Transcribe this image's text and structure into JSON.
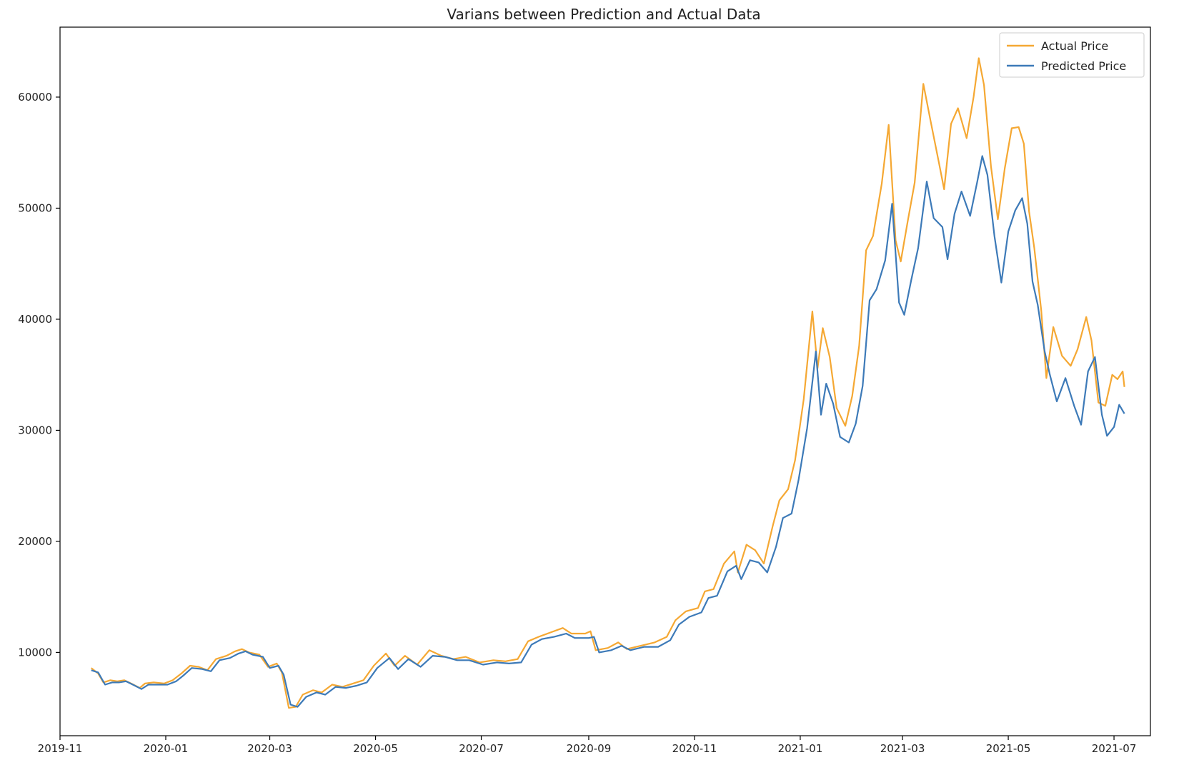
{
  "chart_data": {
    "type": "line",
    "title": "Varians between Prediction and Actual Data",
    "xlabel": "",
    "ylabel": "",
    "x_axis_type": "date",
    "xlim": [
      "2019-11-01",
      "2021-07-22"
    ],
    "ylim": [
      2500,
      66300
    ],
    "x_ticks": [
      "2019-11-01",
      "2020-01-01",
      "2020-03-01",
      "2020-05-01",
      "2020-07-01",
      "2020-09-01",
      "2020-11-01",
      "2021-01-01",
      "2021-03-01",
      "2021-05-01",
      "2021-07-01"
    ],
    "x_tick_labels": [
      "2019-11",
      "2020-01",
      "2020-03",
      "2020-05",
      "2020-07",
      "2020-09",
      "2020-11",
      "2021-01",
      "2021-03",
      "2021-05",
      "2021-07"
    ],
    "y_ticks": [
      10000,
      20000,
      30000,
      40000,
      50000,
      60000
    ],
    "y_tick_labels": [
      "10000",
      "20000",
      "30000",
      "40000",
      "50000",
      "60000"
    ],
    "grid": false,
    "legend_position": "top-right",
    "series": [
      {
        "name": "Actual Price",
        "color": "#f5a833",
        "points": [
          [
            "2019-11-19",
            8600
          ],
          [
            "2019-11-23",
            8100
          ],
          [
            "2019-11-26",
            7300
          ],
          [
            "2019-11-30",
            7500
          ],
          [
            "2019-12-04",
            7400
          ],
          [
            "2019-12-08",
            7500
          ],
          [
            "2019-12-12",
            7200
          ],
          [
            "2019-12-17",
            6800
          ],
          [
            "2019-12-20",
            7200
          ],
          [
            "2019-12-25",
            7300
          ],
          [
            "2019-12-31",
            7200
          ],
          [
            "2020-01-05",
            7500
          ],
          [
            "2020-01-10",
            8100
          ],
          [
            "2020-01-15",
            8800
          ],
          [
            "2020-01-20",
            8700
          ],
          [
            "2020-01-25",
            8400
          ],
          [
            "2020-01-30",
            9400
          ],
          [
            "2020-02-05",
            9700
          ],
          [
            "2020-02-10",
            10100
          ],
          [
            "2020-02-14",
            10300
          ],
          [
            "2020-02-18",
            10000
          ],
          [
            "2020-02-24",
            9800
          ],
          [
            "2020-02-29",
            8700
          ],
          [
            "2020-03-05",
            9000
          ],
          [
            "2020-03-08",
            8200
          ],
          [
            "2020-03-12",
            5000
          ],
          [
            "2020-03-16",
            5100
          ],
          [
            "2020-03-20",
            6200
          ],
          [
            "2020-03-26",
            6600
          ],
          [
            "2020-03-31",
            6400
          ],
          [
            "2020-04-06",
            7100
          ],
          [
            "2020-04-12",
            6900
          ],
          [
            "2020-04-18",
            7200
          ],
          [
            "2020-04-24",
            7500
          ],
          [
            "2020-04-30",
            8800
          ],
          [
            "2020-05-07",
            9900
          ],
          [
            "2020-05-12",
            8800
          ],
          [
            "2020-05-18",
            9700
          ],
          [
            "2020-05-25",
            8900
          ],
          [
            "2020-06-01",
            10200
          ],
          [
            "2020-06-08",
            9700
          ],
          [
            "2020-06-15",
            9400
          ],
          [
            "2020-06-22",
            9600
          ],
          [
            "2020-06-30",
            9100
          ],
          [
            "2020-07-08",
            9300
          ],
          [
            "2020-07-15",
            9200
          ],
          [
            "2020-07-22",
            9400
          ],
          [
            "2020-07-28",
            11000
          ],
          [
            "2020-08-03",
            11400
          ],
          [
            "2020-08-10",
            11800
          ],
          [
            "2020-08-17",
            12200
          ],
          [
            "2020-08-22",
            11700
          ],
          [
            "2020-08-30",
            11700
          ],
          [
            "2020-09-02",
            11900
          ],
          [
            "2020-09-05",
            10200
          ],
          [
            "2020-09-12",
            10400
          ],
          [
            "2020-09-18",
            10900
          ],
          [
            "2020-09-23",
            10300
          ],
          [
            "2020-10-01",
            10600
          ],
          [
            "2020-10-09",
            10900
          ],
          [
            "2020-10-16",
            11400
          ],
          [
            "2020-10-21",
            12900
          ],
          [
            "2020-10-27",
            13700
          ],
          [
            "2020-11-03",
            14000
          ],
          [
            "2020-11-07",
            15500
          ],
          [
            "2020-11-12",
            15700
          ],
          [
            "2020-11-18",
            18000
          ],
          [
            "2020-11-24",
            19100
          ],
          [
            "2020-11-26",
            17200
          ],
          [
            "2020-12-01",
            19700
          ],
          [
            "2020-12-06",
            19200
          ],
          [
            "2020-12-11",
            18000
          ],
          [
            "2020-12-16",
            21300
          ],
          [
            "2020-12-20",
            23700
          ],
          [
            "2020-12-25",
            24700
          ],
          [
            "2020-12-29",
            27300
          ],
          [
            "2021-01-03",
            32800
          ],
          [
            "2021-01-08",
            40700
          ],
          [
            "2021-01-11",
            35600
          ],
          [
            "2021-01-14",
            39200
          ],
          [
            "2021-01-18",
            36600
          ],
          [
            "2021-01-22",
            32000
          ],
          [
            "2021-01-27",
            30400
          ],
          [
            "2021-01-31",
            33100
          ],
          [
            "2021-02-04",
            37600
          ],
          [
            "2021-02-08",
            46200
          ],
          [
            "2021-02-12",
            47500
          ],
          [
            "2021-02-17",
            52200
          ],
          [
            "2021-02-21",
            57500
          ],
          [
            "2021-02-25",
            47100
          ],
          [
            "2021-02-28",
            45200
          ],
          [
            "2021-03-04",
            48800
          ],
          [
            "2021-03-08",
            52300
          ],
          [
            "2021-03-13",
            61200
          ],
          [
            "2021-03-17",
            58000
          ],
          [
            "2021-03-22",
            54100
          ],
          [
            "2021-03-25",
            51700
          ],
          [
            "2021-03-29",
            57600
          ],
          [
            "2021-04-02",
            59000
          ],
          [
            "2021-04-07",
            56300
          ],
          [
            "2021-04-11",
            60000
          ],
          [
            "2021-04-14",
            63500
          ],
          [
            "2021-04-17",
            61100
          ],
          [
            "2021-04-21",
            53800
          ],
          [
            "2021-04-25",
            49000
          ],
          [
            "2021-04-29",
            53600
          ],
          [
            "2021-05-03",
            57200
          ],
          [
            "2021-05-07",
            57300
          ],
          [
            "2021-05-10",
            55800
          ],
          [
            "2021-05-13",
            49700
          ],
          [
            "2021-05-16",
            46400
          ],
          [
            "2021-05-20",
            40800
          ],
          [
            "2021-05-23",
            34700
          ],
          [
            "2021-05-27",
            39300
          ],
          [
            "2021-06-01",
            36700
          ],
          [
            "2021-06-06",
            35800
          ],
          [
            "2021-06-10",
            37300
          ],
          [
            "2021-06-15",
            40200
          ],
          [
            "2021-06-18",
            38100
          ],
          [
            "2021-06-22",
            32500
          ],
          [
            "2021-06-26",
            32200
          ],
          [
            "2021-06-30",
            35000
          ],
          [
            "2021-07-03",
            34600
          ],
          [
            "2021-07-06",
            35300
          ],
          [
            "2021-07-07",
            33900
          ]
        ]
      },
      {
        "name": "Predicted Price",
        "color": "#3d7ab8",
        "points": [
          [
            "2019-11-19",
            8400
          ],
          [
            "2019-11-23",
            8200
          ],
          [
            "2019-11-27",
            7100
          ],
          [
            "2019-12-01",
            7300
          ],
          [
            "2019-12-05",
            7300
          ],
          [
            "2019-12-09",
            7400
          ],
          [
            "2019-12-13",
            7100
          ],
          [
            "2019-12-18",
            6700
          ],
          [
            "2019-12-22",
            7100
          ],
          [
            "2019-12-27",
            7100
          ],
          [
            "2020-01-02",
            7100
          ],
          [
            "2020-01-07",
            7400
          ],
          [
            "2020-01-11",
            7900
          ],
          [
            "2020-01-16",
            8600
          ],
          [
            "2020-01-22",
            8500
          ],
          [
            "2020-01-27",
            8300
          ],
          [
            "2020-02-01",
            9300
          ],
          [
            "2020-02-07",
            9500
          ],
          [
            "2020-02-12",
            9900
          ],
          [
            "2020-02-16",
            10100
          ],
          [
            "2020-02-20",
            9800
          ],
          [
            "2020-02-26",
            9600
          ],
          [
            "2020-03-01",
            8600
          ],
          [
            "2020-03-06",
            8800
          ],
          [
            "2020-03-09",
            8000
          ],
          [
            "2020-03-13",
            5300
          ],
          [
            "2020-03-17",
            5100
          ],
          [
            "2020-03-22",
            6000
          ],
          [
            "2020-03-28",
            6400
          ],
          [
            "2020-04-02",
            6200
          ],
          [
            "2020-04-08",
            6900
          ],
          [
            "2020-04-14",
            6800
          ],
          [
            "2020-04-20",
            7000
          ],
          [
            "2020-04-26",
            7300
          ],
          [
            "2020-05-02",
            8600
          ],
          [
            "2020-05-09",
            9500
          ],
          [
            "2020-05-14",
            8500
          ],
          [
            "2020-05-20",
            9400
          ],
          [
            "2020-05-27",
            8700
          ],
          [
            "2020-06-03",
            9700
          ],
          [
            "2020-06-10",
            9600
          ],
          [
            "2020-06-17",
            9300
          ],
          [
            "2020-06-24",
            9300
          ],
          [
            "2020-07-02",
            8900
          ],
          [
            "2020-07-10",
            9100
          ],
          [
            "2020-07-17",
            9000
          ],
          [
            "2020-07-24",
            9100
          ],
          [
            "2020-07-30",
            10700
          ],
          [
            "2020-08-05",
            11200
          ],
          [
            "2020-08-12",
            11400
          ],
          [
            "2020-08-19",
            11700
          ],
          [
            "2020-08-24",
            11300
          ],
          [
            "2020-09-01",
            11300
          ],
          [
            "2020-09-04",
            11400
          ],
          [
            "2020-09-07",
            10000
          ],
          [
            "2020-09-14",
            10200
          ],
          [
            "2020-09-20",
            10600
          ],
          [
            "2020-09-25",
            10200
          ],
          [
            "2020-10-03",
            10500
          ],
          [
            "2020-10-11",
            10500
          ],
          [
            "2020-10-18",
            11100
          ],
          [
            "2020-10-23",
            12500
          ],
          [
            "2020-10-29",
            13200
          ],
          [
            "2020-11-05",
            13600
          ],
          [
            "2020-11-09",
            14900
          ],
          [
            "2020-11-14",
            15100
          ],
          [
            "2020-11-20",
            17300
          ],
          [
            "2020-11-25",
            17800
          ],
          [
            "2020-11-28",
            16600
          ],
          [
            "2020-12-03",
            18300
          ],
          [
            "2020-12-08",
            18100
          ],
          [
            "2020-12-13",
            17200
          ],
          [
            "2020-12-18",
            19500
          ],
          [
            "2020-12-22",
            22100
          ],
          [
            "2020-12-27",
            22500
          ],
          [
            "2020-12-31",
            25500
          ],
          [
            "2021-01-05",
            30200
          ],
          [
            "2021-01-10",
            37100
          ],
          [
            "2021-01-13",
            31400
          ],
          [
            "2021-01-16",
            34200
          ],
          [
            "2021-01-20",
            32400
          ],
          [
            "2021-01-24",
            29400
          ],
          [
            "2021-01-29",
            28900
          ],
          [
            "2021-02-02",
            30600
          ],
          [
            "2021-02-06",
            34000
          ],
          [
            "2021-02-10",
            41700
          ],
          [
            "2021-02-14",
            42700
          ],
          [
            "2021-02-19",
            45300
          ],
          [
            "2021-02-23",
            50400
          ],
          [
            "2021-02-27",
            41500
          ],
          [
            "2021-03-02",
            40400
          ],
          [
            "2021-03-06",
            43500
          ],
          [
            "2021-03-10",
            46400
          ],
          [
            "2021-03-15",
            52400
          ],
          [
            "2021-03-19",
            49100
          ],
          [
            "2021-03-24",
            48300
          ],
          [
            "2021-03-27",
            45400
          ],
          [
            "2021-03-31",
            49500
          ],
          [
            "2021-04-04",
            51500
          ],
          [
            "2021-04-09",
            49300
          ],
          [
            "2021-04-13",
            52300
          ],
          [
            "2021-04-16",
            54700
          ],
          [
            "2021-04-19",
            53000
          ],
          [
            "2021-04-23",
            47500
          ],
          [
            "2021-04-27",
            43300
          ],
          [
            "2021-05-01",
            47900
          ],
          [
            "2021-05-05",
            49800
          ],
          [
            "2021-05-09",
            50900
          ],
          [
            "2021-05-12",
            48600
          ],
          [
            "2021-05-15",
            43400
          ],
          [
            "2021-05-18",
            41300
          ],
          [
            "2021-05-22",
            37100
          ],
          [
            "2021-05-25",
            35000
          ],
          [
            "2021-05-29",
            32600
          ],
          [
            "2021-06-03",
            34700
          ],
          [
            "2021-06-08",
            32200
          ],
          [
            "2021-06-12",
            30500
          ],
          [
            "2021-06-16",
            35300
          ],
          [
            "2021-06-20",
            36600
          ],
          [
            "2021-06-24",
            31400
          ],
          [
            "2021-06-27",
            29500
          ],
          [
            "2021-07-01",
            30300
          ],
          [
            "2021-07-04",
            32300
          ],
          [
            "2021-07-07",
            31500
          ]
        ]
      }
    ]
  }
}
